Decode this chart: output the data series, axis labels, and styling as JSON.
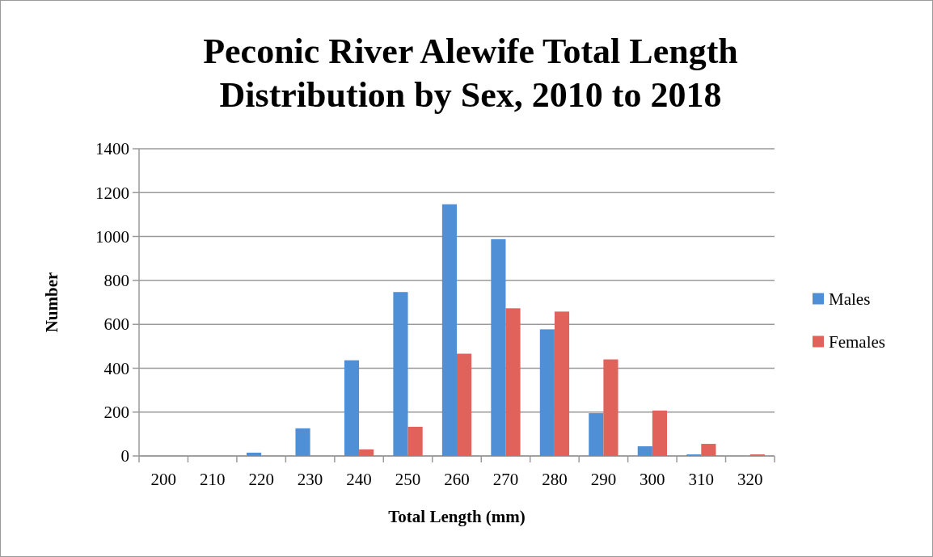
{
  "chart_data": {
    "type": "bar",
    "title": "Peconic River Alewife Total Length Distribution by Sex, 2010 to 2018",
    "xlabel": "Total Length (mm)",
    "ylabel": "Number",
    "categories": [
      "200",
      "210",
      "220",
      "230",
      "240",
      "250",
      "260",
      "270",
      "280",
      "290",
      "300",
      "310",
      "320"
    ],
    "series": [
      {
        "name": "Males",
        "color": "#4f8fd6",
        "values": [
          0,
          0,
          15,
          126,
          436,
          747,
          1147,
          988,
          577,
          195,
          44,
          7,
          0
        ]
      },
      {
        "name": "Females",
        "color": "#e0625a",
        "values": [
          0,
          0,
          0,
          0,
          30,
          133,
          466,
          673,
          658,
          440,
          207,
          55,
          7
        ]
      }
    ],
    "ylim": [
      0,
      1400
    ],
    "yticks": [
      0,
      200,
      400,
      600,
      800,
      1000,
      1200,
      1400
    ],
    "grid": "y",
    "legend": "right"
  }
}
